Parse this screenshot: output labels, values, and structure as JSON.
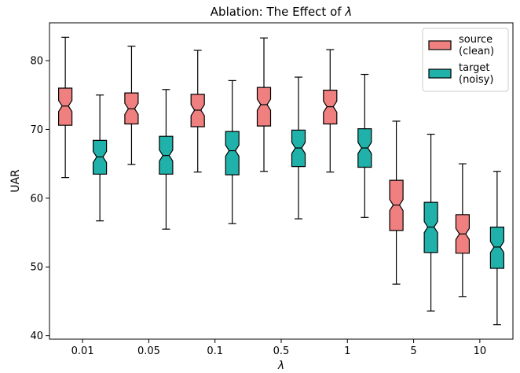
{
  "chart_data": {
    "type": "boxplot",
    "title": "Ablation: The Effect of λ",
    "title_prefix": "Ablation: The Effect of ",
    "title_symbol": "λ",
    "xlabel": "λ",
    "ylabel": "UAR",
    "ylim": [
      39.5,
      85.5
    ],
    "yticks": [
      40,
      50,
      60,
      70,
      80
    ],
    "categories": [
      "0.01",
      "0.05",
      "0.1",
      "0.5",
      "1",
      "5",
      "10"
    ],
    "legend_position": "top-right",
    "grid": false,
    "series": [
      {
        "name": "source\n(clean)",
        "name_lines": [
          "source",
          "(clean)"
        ],
        "color": "#f08080",
        "boxes": [
          {
            "whislo": 63.0,
            "q1": 70.6,
            "med": 73.4,
            "q3": 76.0,
            "whishi": 83.4
          },
          {
            "whislo": 64.9,
            "q1": 70.8,
            "med": 73.0,
            "q3": 75.3,
            "whishi": 82.1
          },
          {
            "whislo": 63.8,
            "q1": 70.4,
            "med": 72.8,
            "q3": 75.1,
            "whishi": 81.5
          },
          {
            "whislo": 63.9,
            "q1": 70.5,
            "med": 73.6,
            "q3": 76.1,
            "whishi": 83.3
          },
          {
            "whislo": 63.8,
            "q1": 70.8,
            "med": 73.3,
            "q3": 75.7,
            "whishi": 81.6
          },
          {
            "whislo": 47.5,
            "q1": 55.3,
            "med": 59.0,
            "q3": 62.6,
            "whishi": 71.2
          },
          {
            "whislo": 45.7,
            "q1": 52.0,
            "med": 54.8,
            "q3": 57.6,
            "whishi": 65.0
          }
        ]
      },
      {
        "name": "target\n(noisy)",
        "name_lines": [
          "target",
          "(noisy)"
        ],
        "color": "#20b2aa",
        "boxes": [
          {
            "whislo": 56.7,
            "q1": 63.5,
            "med": 66.0,
            "q3": 68.4,
            "whishi": 75.0
          },
          {
            "whislo": 55.5,
            "q1": 63.5,
            "med": 66.2,
            "q3": 69.0,
            "whishi": 75.8
          },
          {
            "whislo": 56.3,
            "q1": 63.4,
            "med": 66.9,
            "q3": 69.7,
            "whishi": 77.1
          },
          {
            "whislo": 57.0,
            "q1": 64.6,
            "med": 67.3,
            "q3": 69.9,
            "whishi": 77.6
          },
          {
            "whislo": 57.2,
            "q1": 64.5,
            "med": 67.3,
            "q3": 70.1,
            "whishi": 78.0
          },
          {
            "whislo": 43.6,
            "q1": 52.1,
            "med": 55.8,
            "q3": 59.4,
            "whishi": 69.3
          },
          {
            "whislo": 41.6,
            "q1": 49.8,
            "med": 52.9,
            "q3": 55.8,
            "whishi": 63.9
          }
        ]
      }
    ]
  }
}
